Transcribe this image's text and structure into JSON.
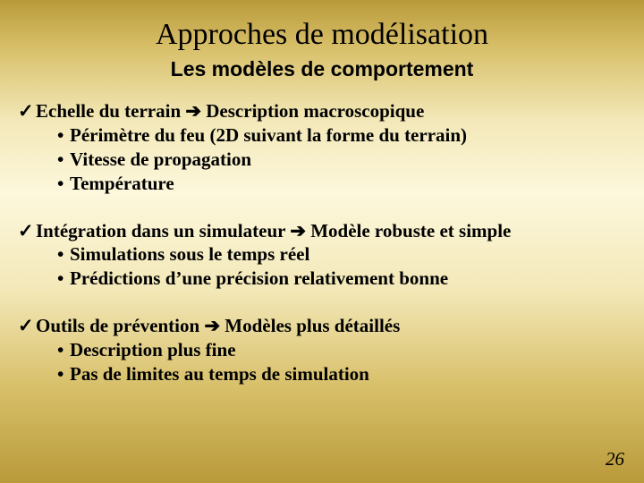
{
  "slide": {
    "background_gradient": [
      "#b99a3a",
      "#d8c06a",
      "#f3e8b8",
      "#fdf8dd",
      "#f3e8b8",
      "#d8c06a",
      "#b99a3a"
    ],
    "title": "Approches de modélisation",
    "title_fontsize": 34,
    "title_font": "Times New Roman",
    "subtitle": "Les modèles de comportement",
    "subtitle_fontsize": 23,
    "subtitle_font": "Verdana",
    "text_color": "#000000",
    "body_fontsize": 21,
    "check_glyph": "✓",
    "arrow_glyph": "➔",
    "bullet_glyph": "•",
    "blocks": [
      {
        "lead_before": "Echelle du terrain ",
        "lead_after": " Description macroscopique",
        "subs": [
          "Périmètre du feu (2D suivant la forme du terrain)",
          "Vitesse de propagation",
          "Température"
        ]
      },
      {
        "lead_before": "Intégration dans un simulateur  ",
        "lead_after": " Modèle robuste et simple",
        "subs": [
          "Simulations sous le temps réel",
          "Prédictions d’une précision relativement bonne"
        ]
      },
      {
        "lead_before": "Outils de prévention ",
        "lead_after": " Modèles plus détaillés",
        "subs": [
          "Description plus fine",
          "Pas de limites au temps de simulation"
        ]
      }
    ],
    "page_number": "26"
  }
}
